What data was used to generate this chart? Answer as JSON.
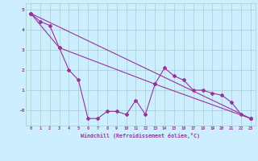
{
  "xlabel": "Windchill (Refroidissement éolien,°C)",
  "line1_x": [
    0,
    1,
    2,
    3,
    4,
    5,
    6,
    7,
    8,
    9,
    10,
    11,
    12,
    13,
    14,
    15,
    16,
    17,
    18,
    19,
    20,
    21,
    22,
    23
  ],
  "line1_y": [
    4.8,
    4.4,
    4.2,
    3.1,
    2.0,
    1.5,
    -0.4,
    -0.4,
    -0.05,
    -0.05,
    -0.2,
    0.5,
    -0.2,
    1.3,
    2.1,
    1.7,
    1.5,
    1.0,
    1.0,
    0.85,
    0.75,
    0.4,
    -0.2,
    -0.4
  ],
  "line2_x": [
    0,
    3,
    13,
    23
  ],
  "line2_y": [
    4.8,
    3.1,
    1.3,
    -0.4
  ],
  "line3_x": [
    0,
    23
  ],
  "line3_y": [
    4.8,
    -0.4
  ],
  "line_color": "#993399",
  "bg_color": "#cceeff",
  "grid_color": "#aacccc",
  "axis_color": "#993399",
  "xlim": [
    -0.5,
    23.5
  ],
  "ylim": [
    -0.75,
    5.3
  ],
  "ytick_positions": [
    5,
    4,
    3,
    2,
    1,
    0
  ],
  "ytick_labels": [
    "5",
    "4",
    "3",
    "2",
    "1",
    "-0"
  ],
  "xtick_labels": [
    "0",
    "1",
    "2",
    "3",
    "4",
    "5",
    "6",
    "7",
    "8",
    "9",
    "10",
    "11",
    "12",
    "13",
    "14",
    "15",
    "16",
    "17",
    "18",
    "19",
    "20",
    "21",
    "22",
    "23"
  ]
}
